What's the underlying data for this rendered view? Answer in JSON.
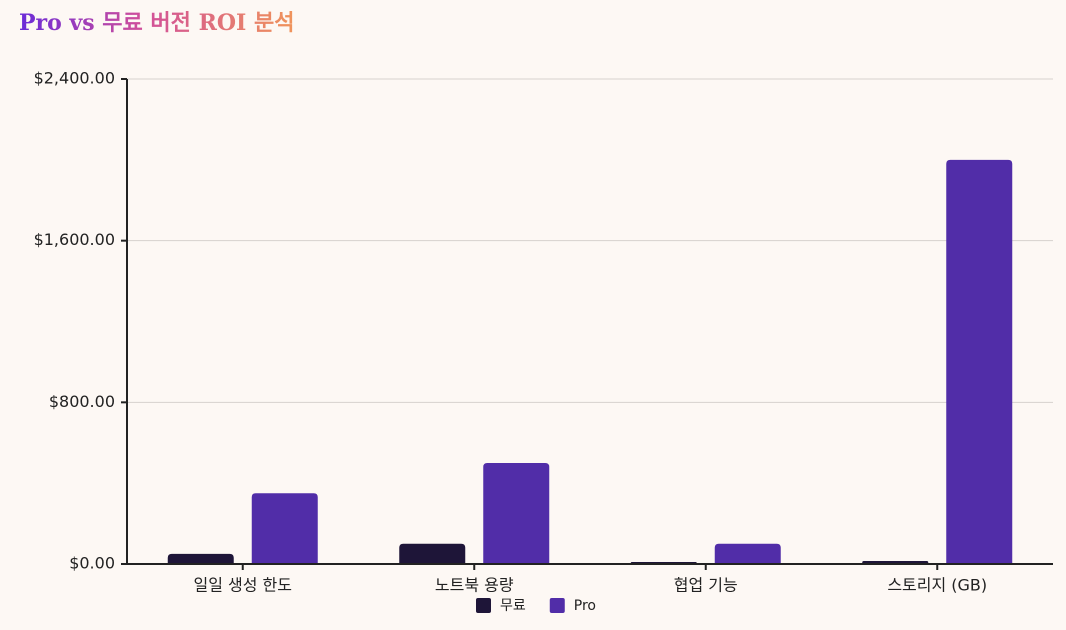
{
  "chart_data": {
    "type": "bar",
    "title": "Pro vs 무료 버전 ROI 분석",
    "categories": [
      "일일 생성 한도",
      "노트북 용량",
      "협업 기능",
      "스토리지 (GB)"
    ],
    "series": [
      {
        "name": "무료",
        "color": "#1e1538",
        "values": [
          50,
          100,
          10,
          15
        ]
      },
      {
        "name": "Pro",
        "color": "#512da8",
        "values": [
          350,
          500,
          100,
          2000
        ]
      }
    ],
    "ylim": [
      0,
      2400
    ],
    "yticks": [
      {
        "value": 0,
        "label": "$0.00"
      },
      {
        "value": 800,
        "label": "$800.00"
      },
      {
        "value": 1600,
        "label": "$1,600.00"
      },
      {
        "value": 2400,
        "label": "$2,400.00"
      }
    ],
    "grid": true
  }
}
